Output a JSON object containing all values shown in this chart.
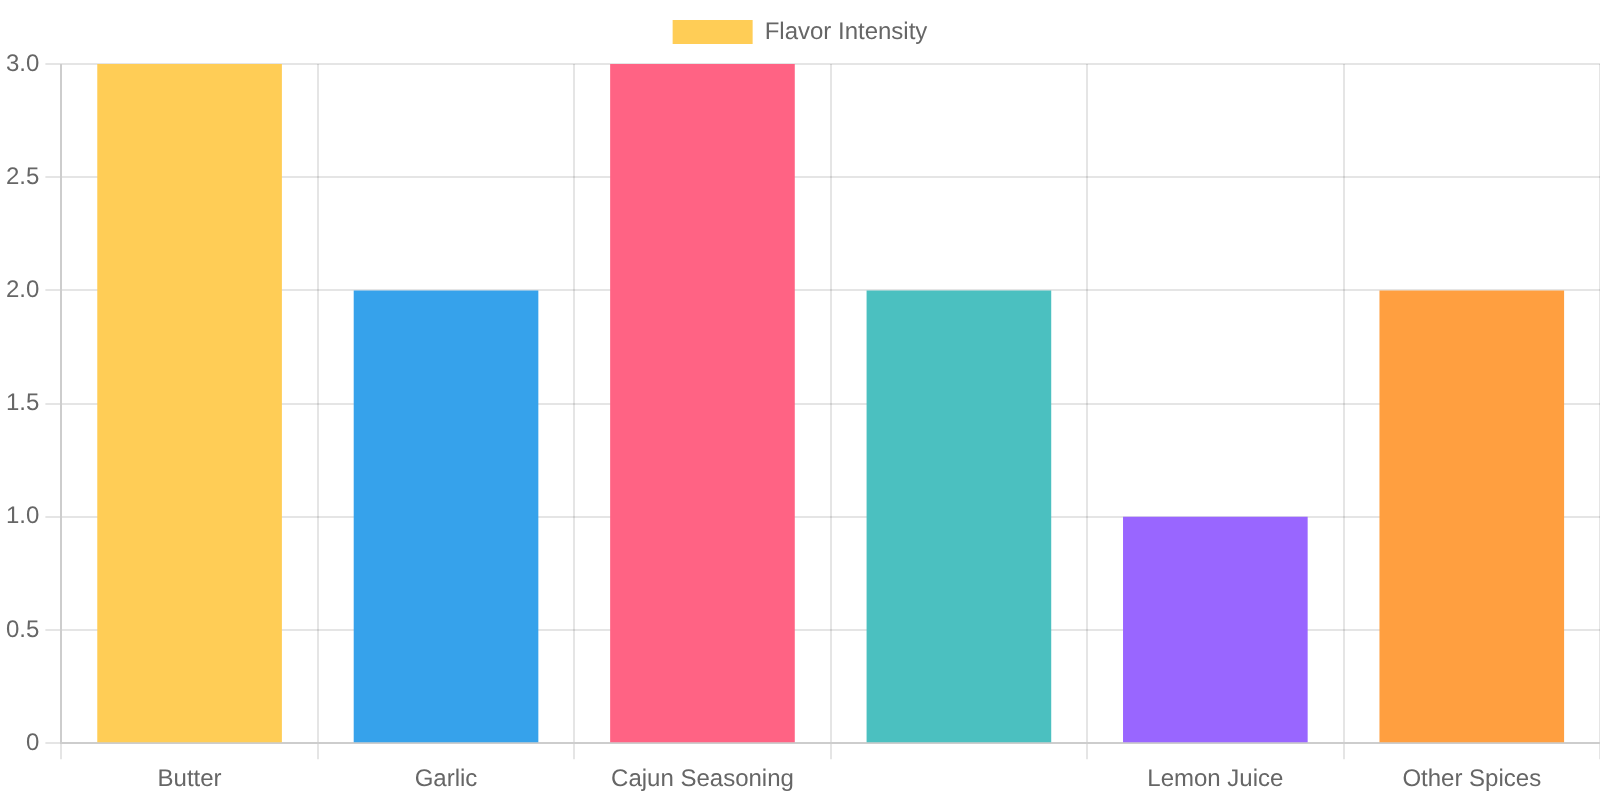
{
  "chart_data": {
    "type": "bar",
    "categories": [
      "Butter",
      "Garlic",
      "Cajun Seasoning",
      null,
      "Lemon Juice",
      "Other Spices"
    ],
    "series": [
      {
        "name": "Flavor Intensity",
        "colors": [
          "#ffcd56",
          "#36a2eb",
          "#ff6384",
          "#4bc0c0",
          "#9966ff",
          "#ff9f40"
        ],
        "values": [
          3,
          2,
          3,
          2,
          1,
          2
        ]
      }
    ],
    "ylim": [
      0,
      3
    ],
    "yticks": [
      0,
      0.5,
      {
        "value": 1,
        "label": "1.0"
      },
      1.5,
      {
        "value": 2,
        "label": "2.0"
      },
      2.5,
      {
        "value": 3,
        "label": "3.0"
      }
    ],
    "grid": true,
    "legend": "top"
  }
}
